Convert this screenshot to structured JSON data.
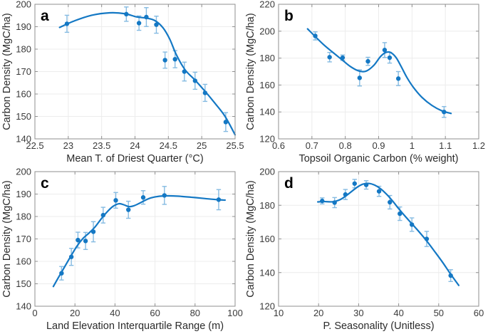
{
  "figure": {
    "background": "#ffffff",
    "panels": [
      "a",
      "b",
      "c",
      "d"
    ]
  },
  "style": {
    "line_color": "#1478c4",
    "marker_color": "#1478c4",
    "error_color": "#85bbe2",
    "grid_color": "#ececec",
    "axis_color": "#8f8f8f",
    "tick_text_color": "#3a3a3a",
    "label_text_color": "#2b2b2b",
    "letter_color": "#000000"
  },
  "chart_data": [
    {
      "type": "line",
      "panel": "a",
      "xlabel": "Mean T. of Driest Quarter (°C)",
      "ylabel": "Carbon Density (MgC/ha)",
      "xlim": [
        22.5,
        25.5
      ],
      "ylim": [
        140,
        200
      ],
      "grid": true,
      "legend": null,
      "x_tick_values": [
        22.5,
        23,
        23.5,
        24,
        24.5,
        25,
        25.5
      ],
      "x_tick_labels": [
        "22.5",
        "23",
        "23.5",
        "24",
        "24.5",
        "25",
        "25.5"
      ],
      "y_tick_values": [
        140,
        150,
        160,
        170,
        180,
        190,
        200
      ],
      "y_tick_labels": [
        "140",
        "150",
        "160",
        "170",
        "180",
        "190",
        "200"
      ],
      "points": [
        {
          "x": 22.98,
          "y": 191.3,
          "err": 3.8
        },
        {
          "x": 23.87,
          "y": 195.6,
          "err": 3.2
        },
        {
          "x": 24.06,
          "y": 191.6,
          "err": 3.2
        },
        {
          "x": 24.17,
          "y": 194.3,
          "err": 4.2
        },
        {
          "x": 24.32,
          "y": 190.9,
          "err": 3.8
        },
        {
          "x": 24.45,
          "y": 175.1,
          "err": 3.6
        },
        {
          "x": 24.6,
          "y": 175.5,
          "err": 3.8
        },
        {
          "x": 24.74,
          "y": 170.0,
          "err": 4.2
        },
        {
          "x": 24.9,
          "y": 165.9,
          "err": 3.8
        },
        {
          "x": 25.05,
          "y": 160.5,
          "err": 3.8
        },
        {
          "x": 25.36,
          "y": 147.5,
          "err": 4.2
        }
      ],
      "curve": [
        [
          22.87,
          189.7
        ],
        [
          23.1,
          192.7
        ],
        [
          23.35,
          195.1
        ],
        [
          23.62,
          196.2
        ],
        [
          23.85,
          195.8
        ],
        [
          24.02,
          194.4
        ],
        [
          24.18,
          193.8
        ],
        [
          24.3,
          192.7
        ],
        [
          24.42,
          189.5
        ],
        [
          24.52,
          184.5
        ],
        [
          24.62,
          177.5
        ],
        [
          24.75,
          170.8
        ],
        [
          24.9,
          166.2
        ],
        [
          25.05,
          161.2
        ],
        [
          25.2,
          155.8
        ],
        [
          25.35,
          150.0
        ],
        [
          25.5,
          141.8
        ]
      ]
    },
    {
      "type": "line",
      "panel": "b",
      "xlabel": "Topsoil Organic Carbon (% weight)",
      "ylabel": "Carbon Density (MgC/ha)",
      "xlim": [
        0.6,
        1.2
      ],
      "ylim": [
        120,
        220
      ],
      "grid": true,
      "legend": null,
      "x_tick_values": [
        0.6,
        0.7,
        0.8,
        0.9,
        1,
        1.1,
        1.2
      ],
      "x_tick_labels": [
        "0.6",
        "0.7",
        "0.8",
        "0.9",
        "1",
        "1.1",
        "1.2"
      ],
      "y_tick_values": [
        120,
        140,
        160,
        180,
        200,
        220
      ],
      "y_tick_labels": [
        "120",
        "140",
        "160",
        "180",
        "200",
        "220"
      ],
      "points": [
        {
          "x": 0.71,
          "y": 196.5,
          "err": 3.0
        },
        {
          "x": 0.753,
          "y": 180.7,
          "err": 3.5
        },
        {
          "x": 0.792,
          "y": 180.3,
          "err": 2.0
        },
        {
          "x": 0.843,
          "y": 165.3,
          "err": 6.0
        },
        {
          "x": 0.868,
          "y": 177.6,
          "err": 3.0
        },
        {
          "x": 0.918,
          "y": 186.0,
          "err": 5.5
        },
        {
          "x": 0.933,
          "y": 180.3,
          "err": 4.0
        },
        {
          "x": 0.959,
          "y": 164.8,
          "err": 5.2
        },
        {
          "x": 1.096,
          "y": 140.0,
          "err": 4.0
        }
      ],
      "curve": [
        [
          0.687,
          201.7
        ],
        [
          0.71,
          196.0
        ],
        [
          0.735,
          190.0
        ],
        [
          0.76,
          184.8
        ],
        [
          0.79,
          178.8
        ],
        [
          0.815,
          173.8
        ],
        [
          0.84,
          170.5
        ],
        [
          0.862,
          170.3
        ],
        [
          0.885,
          174.5
        ],
        [
          0.905,
          181.0
        ],
        [
          0.92,
          184.0
        ],
        [
          0.935,
          184.3
        ],
        [
          0.952,
          180.5
        ],
        [
          0.968,
          173.5
        ],
        [
          0.985,
          165.5
        ],
        [
          1.005,
          158.0
        ],
        [
          1.03,
          150.8
        ],
        [
          1.06,
          144.8
        ],
        [
          1.09,
          140.8
        ],
        [
          1.117,
          138.9
        ]
      ]
    },
    {
      "type": "line",
      "panel": "c",
      "xlabel": "Land Elevation Interquartile Range (m)",
      "ylabel": "Carbon Density (MgC/ha)",
      "xlim": [
        0,
        100
      ],
      "ylim": [
        140,
        200
      ],
      "grid": true,
      "legend": null,
      "x_tick_values": [
        0,
        20,
        40,
        60,
        80,
        100
      ],
      "x_tick_labels": [
        "0",
        "20",
        "40",
        "60",
        "80",
        "100"
      ],
      "y_tick_values": [
        140,
        150,
        160,
        170,
        180,
        190,
        200
      ],
      "y_tick_labels": [
        "140",
        "150",
        "160",
        "170",
        "180",
        "190",
        "200"
      ],
      "points": [
        {
          "x": 13.3,
          "y": 154.7,
          "err": 3.0
        },
        {
          "x": 18.2,
          "y": 162.0,
          "err": 3.8
        },
        {
          "x": 21.5,
          "y": 169.5,
          "err": 3.5
        },
        {
          "x": 25.3,
          "y": 169.1,
          "err": 3.8
        },
        {
          "x": 29.2,
          "y": 173.2,
          "err": 4.5
        },
        {
          "x": 34.1,
          "y": 180.6,
          "err": 3.5
        },
        {
          "x": 40.4,
          "y": 187.2,
          "err": 3.5
        },
        {
          "x": 46.7,
          "y": 183.0,
          "err": 3.8
        },
        {
          "x": 54.1,
          "y": 188.5,
          "err": 3.0
        },
        {
          "x": 64.7,
          "y": 189.4,
          "err": 4.0
        },
        {
          "x": 91.8,
          "y": 187.5,
          "err": 4.5
        }
      ],
      "curve": [
        [
          9.2,
          148.8
        ],
        [
          12,
          153.2
        ],
        [
          15,
          157.8
        ],
        [
          18,
          162.4
        ],
        [
          21,
          166.8
        ],
        [
          24,
          170.2
        ],
        [
          27,
          172.6
        ],
        [
          30,
          175.3
        ],
        [
          33,
          178.8
        ],
        [
          36,
          182.0
        ],
        [
          39,
          184.5
        ],
        [
          42,
          185.7
        ],
        [
          44.5,
          185.2
        ],
        [
          47,
          184.4
        ],
        [
          49.5,
          184.8
        ],
        [
          52,
          185.8
        ],
        [
          55,
          187.2
        ],
        [
          58,
          188.3
        ],
        [
          62,
          189.0
        ],
        [
          66,
          189.2
        ],
        [
          71,
          189.1
        ],
        [
          78,
          188.6
        ],
        [
          85,
          188.0
        ],
        [
          91,
          187.5
        ],
        [
          95,
          187.3
        ]
      ]
    },
    {
      "type": "line",
      "panel": "d",
      "xlabel": "P. Seasonality (Unitless)",
      "ylabel": "Carbon Density (MgC/ha)",
      "xlim": [
        10,
        60
      ],
      "ylim": [
        120,
        200
      ],
      "grid": true,
      "legend": null,
      "x_tick_values": [
        10,
        20,
        30,
        40,
        50,
        60
      ],
      "x_tick_labels": [
        "10",
        "20",
        "30",
        "40",
        "50",
        "60"
      ],
      "y_tick_values": [
        120,
        140,
        160,
        180,
        200
      ],
      "y_tick_labels": [
        "120",
        "140",
        "160",
        "180",
        "200"
      ],
      "points": [
        {
          "x": 20.9,
          "y": 182.6,
          "err": 1.8
        },
        {
          "x": 24.0,
          "y": 181.6,
          "err": 3.0
        },
        {
          "x": 26.7,
          "y": 186.4,
          "err": 3.0
        },
        {
          "x": 29.0,
          "y": 192.9,
          "err": 2.5
        },
        {
          "x": 31.9,
          "y": 192.1,
          "err": 2.5
        },
        {
          "x": 35.1,
          "y": 188.3,
          "err": 3.0
        },
        {
          "x": 37.8,
          "y": 181.8,
          "err": 4.0
        },
        {
          "x": 40.3,
          "y": 175.0,
          "err": 4.0
        },
        {
          "x": 43.3,
          "y": 168.5,
          "err": 4.0
        },
        {
          "x": 47.0,
          "y": 160.0,
          "err": 4.5
        },
        {
          "x": 53.0,
          "y": 138.2,
          "err": 3.5
        }
      ],
      "curve": [
        [
          19.8,
          182.0
        ],
        [
          21.5,
          182.2
        ],
        [
          23.5,
          182.1
        ],
        [
          25.5,
          183.5
        ],
        [
          27.5,
          186.8
        ],
        [
          29.5,
          190.5
        ],
        [
          31.0,
          192.5
        ],
        [
          32.5,
          193.0
        ],
        [
          34.0,
          192.0
        ],
        [
          35.5,
          189.8
        ],
        [
          37.0,
          186.5
        ],
        [
          38.5,
          182.5
        ],
        [
          40.0,
          178.0
        ],
        [
          41.5,
          173.8
        ],
        [
          43.0,
          169.8
        ],
        [
          45.0,
          164.5
        ],
        [
          47.0,
          158.8
        ],
        [
          49.0,
          152.5
        ],
        [
          51.0,
          146.0
        ],
        [
          53.0,
          139.0
        ],
        [
          55.0,
          132.4
        ]
      ]
    }
  ]
}
